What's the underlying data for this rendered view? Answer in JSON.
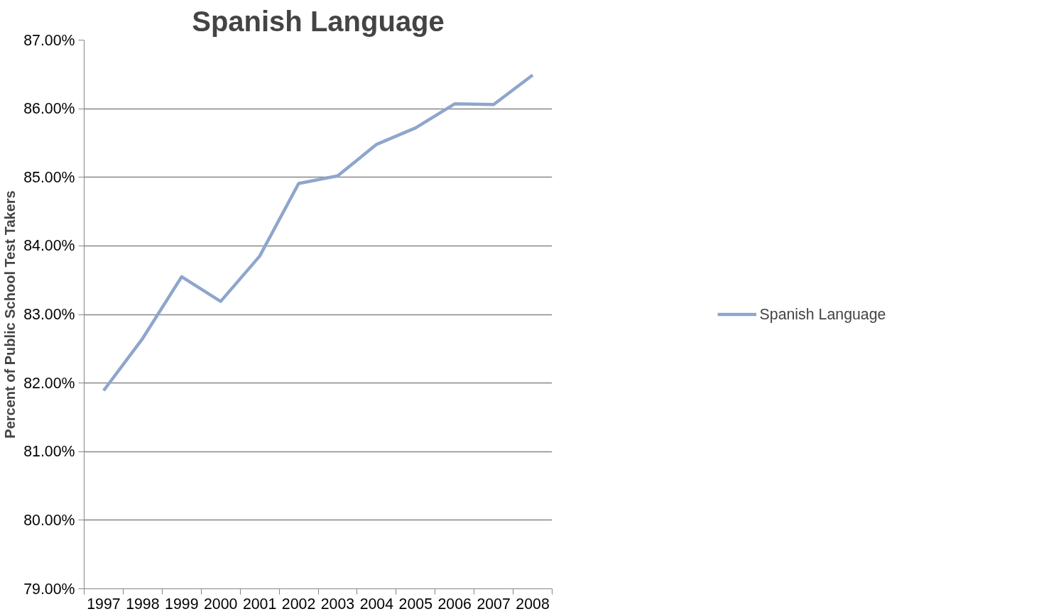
{
  "chart_data": {
    "type": "line",
    "title": "Spanish Language",
    "ylabel": "Percent of Public School Test Takers",
    "categories": [
      "1997",
      "1998",
      "1999",
      "2000",
      "2001",
      "2002",
      "2003",
      "2004",
      "2005",
      "2006",
      "2007",
      "2008"
    ],
    "series": [
      {
        "name": "Spanish Language",
        "color": "#8ea6cc",
        "values": [
          81.89,
          82.65,
          83.55,
          83.19,
          83.85,
          84.91,
          85.02,
          85.48,
          85.72,
          86.07,
          86.06,
          86.49
        ]
      }
    ],
    "ylim": [
      79,
      87
    ],
    "yticks": [
      {
        "value": 79,
        "label": "79.00%"
      },
      {
        "value": 80,
        "label": "80.00%"
      },
      {
        "value": 81,
        "label": "81.00%"
      },
      {
        "value": 82,
        "label": "82.00%"
      },
      {
        "value": 83,
        "label": "83.00%"
      },
      {
        "value": 84,
        "label": "84.00%"
      },
      {
        "value": 85,
        "label": "85.00%"
      },
      {
        "value": 86,
        "label": "86.00%"
      },
      {
        "value": 87,
        "label": "87.00%"
      }
    ],
    "grid": "y",
    "legend": "right",
    "marker": "none",
    "line_style": "solid"
  }
}
